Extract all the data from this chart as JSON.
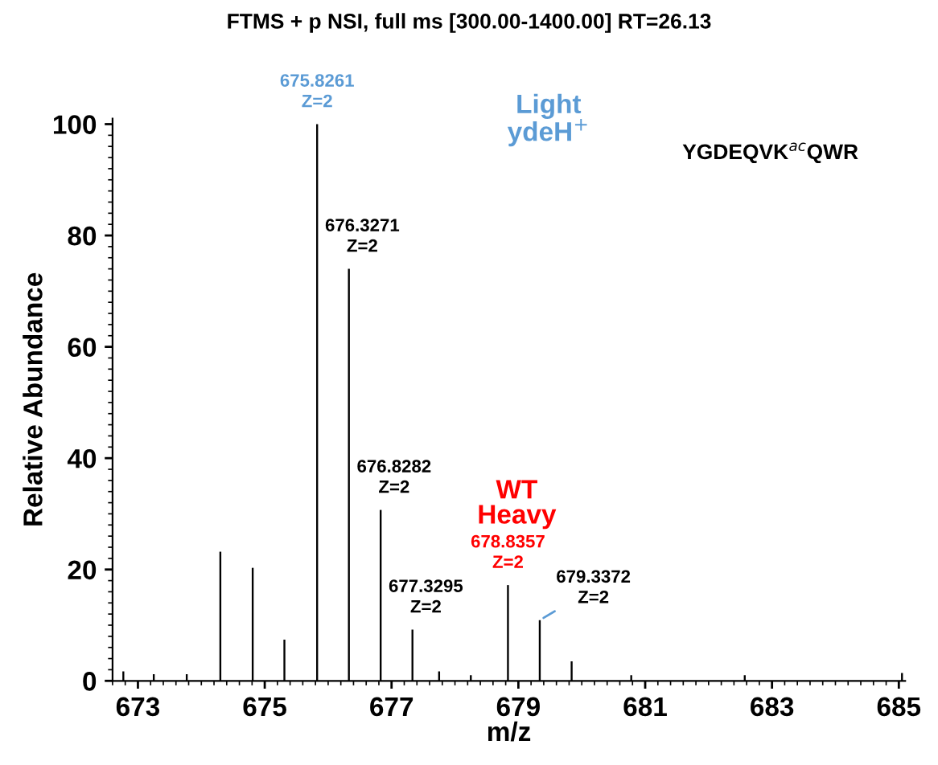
{
  "chart_data": {
    "type": "bar",
    "title": "FTMS + p NSI, full ms [300.00-1400.00] RT=26.13",
    "xlabel": "m/z",
    "ylabel": "Relative Abundance",
    "x": [
      672.77,
      673.25,
      673.77,
      674.3,
      674.81,
      675.31,
      675.8261,
      676.3271,
      676.8282,
      677.3295,
      677.75,
      678.25,
      678.8357,
      679.3372,
      679.84,
      680.78,
      682.57,
      685.05
    ],
    "values": [
      1.7,
      1.2,
      1.2,
      23.2,
      20.3,
      7.4,
      100,
      74,
      30.7,
      9.2,
      1.7,
      1,
      17.2,
      10.9,
      3.5,
      1,
      1,
      1.4
    ],
    "color": "#000000",
    "xlim": [
      672.6,
      685.1
    ],
    "ylim": [
      0,
      101
    ],
    "xticks": [
      673,
      675,
      677,
      679,
      681,
      683,
      685
    ],
    "yticks": [
      0,
      20,
      40,
      60,
      80,
      100
    ],
    "grid": false,
    "annotations": [
      {
        "text": "675.8261\nZ=2",
        "x": 675.8261,
        "y": 100
      },
      {
        "text": "676.3271\nZ=2",
        "x": 676.3271,
        "y": 74
      },
      {
        "text": "676.8282\nZ=2",
        "x": 676.8282,
        "y": 30.7
      },
      {
        "text": "677.3295\nZ=2",
        "x": 677.3295,
        "y": 9.2
      },
      {
        "text": "678.8357\nZ=2",
        "x": 678.8357,
        "y": 17.2
      },
      {
        "text": "679.3372\nZ=2",
        "x": 679.3372,
        "y": 10.9
      },
      "Light\nydeH$^{+}$",
      "WT\nHeavy",
      "YGDEQVK$^{ac}$QWR"
    ]
  }
}
